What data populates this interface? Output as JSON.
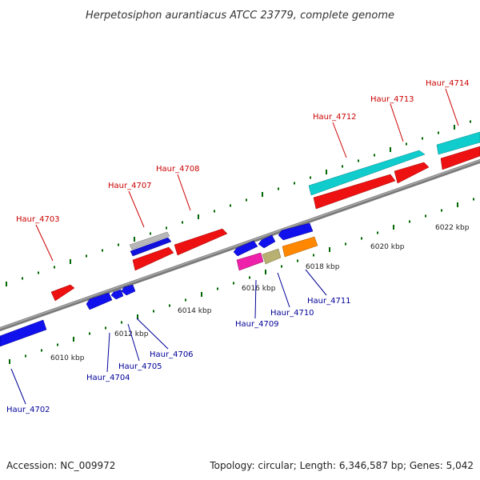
{
  "title": "Herpetosiphon aurantiacus ATCC 23779, complete genome",
  "footer": {
    "accession": "Accession: NC_009972",
    "summary": "Topology: circular; Length: 6,346,587 bp; Genes: 5,042"
  },
  "colors": {
    "top_label": "#cc0000",
    "bottom_label": "#000099",
    "tick": "#006600",
    "backbone": "#888888"
  },
  "kbp_labels": [
    "6010 kbp",
    "6012 kbp",
    "6014 kbp",
    "6016 kbp",
    "6018 kbp",
    "6020 kbp",
    "6022 kbp"
  ],
  "genes_top": [
    "Haur_4703",
    "Haur_4707",
    "Haur_4708",
    "Haur_4712",
    "Haur_4713",
    "Haur_4714"
  ],
  "genes_bottom": [
    "Haur_4702",
    "Haur_4704",
    "Haur_4705",
    "Haur_4706",
    "Haur_4709",
    "Haur_4710",
    "Haur_4711"
  ]
}
